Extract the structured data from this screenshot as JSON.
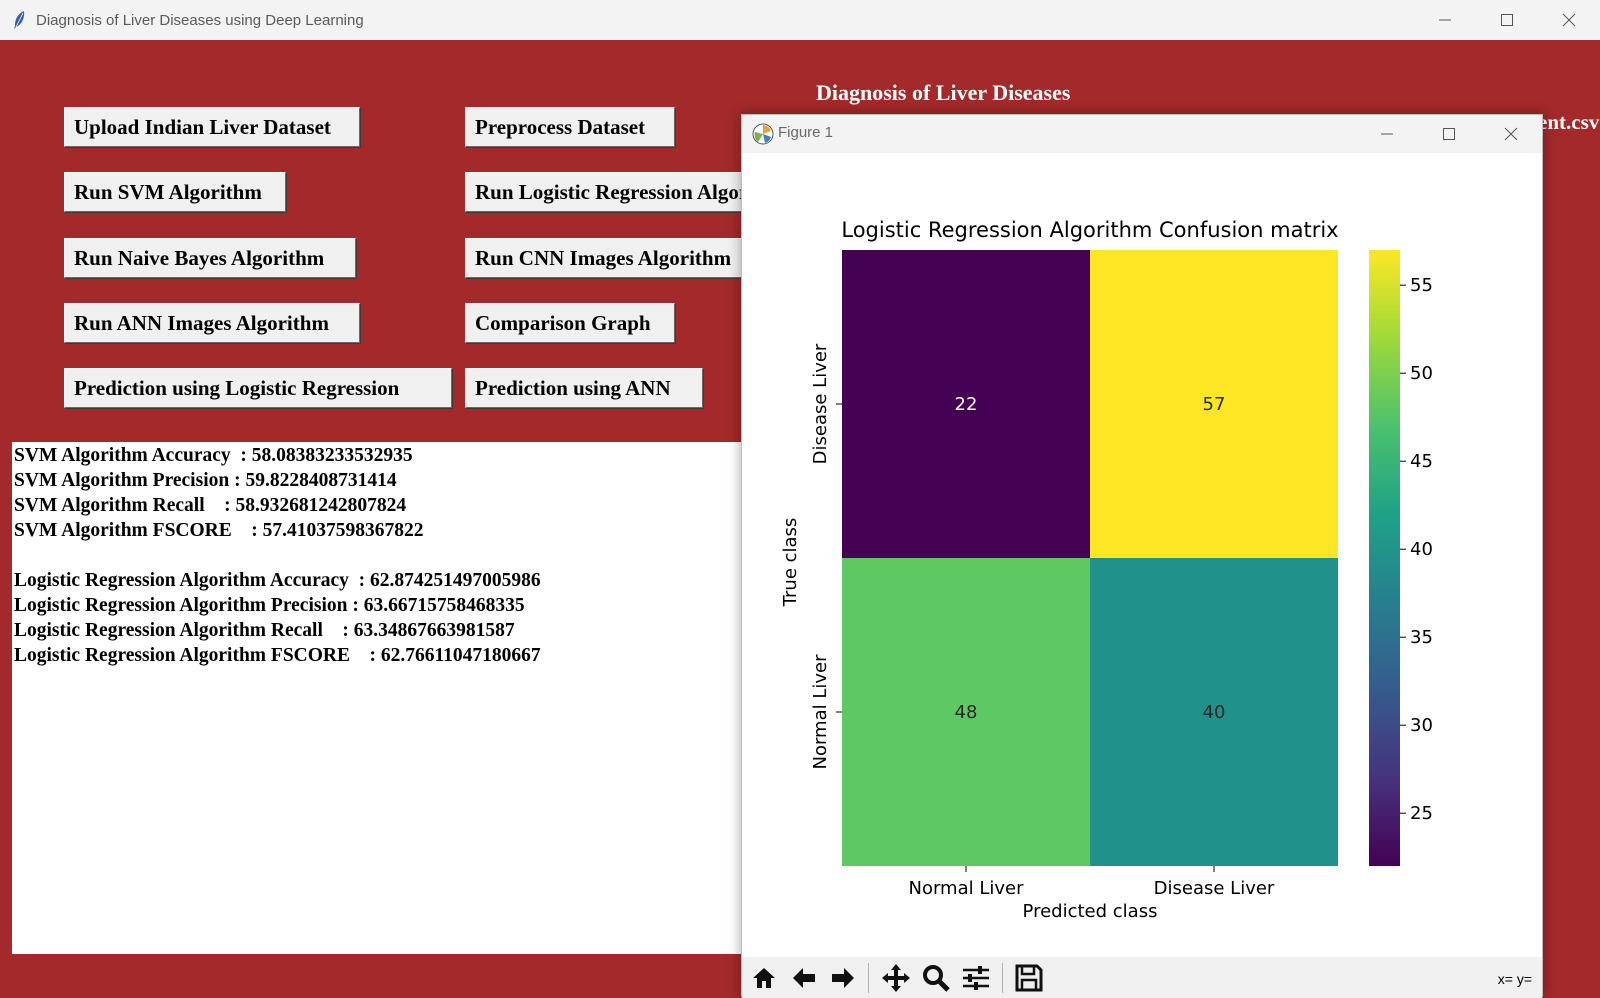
{
  "window": {
    "title": "Diagnosis of Liver Diseases using Deep Learning",
    "minimize_icon": "minimize-icon",
    "maximize_icon": "maximize-icon",
    "close_icon": "close-icon"
  },
  "app": {
    "heading": "Diagnosis of Liver Diseases",
    "clipped_text": "ent.csv",
    "background_color": "#a3292a",
    "buttons": {
      "upload": "Upload Indian Liver Dataset",
      "preprocess": "Preprocess Dataset",
      "svm": "Run SVM Algorithm",
      "logistic": "Run Logistic Regression Algorithm",
      "naive_bayes": "Run Naive Bayes Algorithm",
      "cnn": "Run CNN Images Algorithm",
      "ann": "Run ANN Images Algorithm",
      "comparison": "Comparison Graph",
      "predict_lr": "Prediction using Logistic Regression",
      "predict_ann": "Prediction using ANN"
    },
    "output_lines": [
      "SVM Algorithm Accuracy  : 58.08383233532935",
      "SVM Algorithm Precision : 59.8228408731414",
      "SVM Algorithm Recall    : 58.932681242807824",
      "SVM Algorithm FSCORE    : 57.41037598367822",
      "",
      "Logistic Regression Algorithm Accuracy  : 62.874251497005986",
      "Logistic Regression Algorithm Precision : 63.66715758468335",
      "Logistic Regression Algorithm Recall    : 63.34867663981587",
      "Logistic Regression Algorithm FSCORE    : 62.76611047180667"
    ]
  },
  "figure": {
    "title": "Figure 1",
    "toolbar": {
      "icons": [
        "home-icon",
        "back-icon",
        "forward-icon",
        "pan-icon",
        "zoom-icon",
        "configure-subplots-icon",
        "save-icon"
      ],
      "coords": "x= y="
    }
  },
  "chart_data": {
    "type": "heatmap",
    "title": "Logistic Regression Algorithm Confusion matrix",
    "xlabel": "Predicted class",
    "ylabel": "True class",
    "x_categories": [
      "Normal Liver",
      "Disease Liver"
    ],
    "y_categories": [
      "Disease Liver",
      "Normal Liver"
    ],
    "values": [
      [
        22,
        57
      ],
      [
        48,
        40
      ]
    ],
    "colormap": "viridis",
    "colorbar_range": [
      22,
      57
    ],
    "colorbar_ticks": [
      55,
      50,
      45,
      40,
      35,
      30,
      25
    ],
    "colorbar_tick_labels": [
      "55",
      "50",
      "45",
      "40",
      "35",
      "30",
      "25"
    ],
    "colors": {
      "22": "#440154",
      "57": "#fde725",
      "48": "#5ec962",
      "40": "#21918c"
    },
    "grid": false
  }
}
